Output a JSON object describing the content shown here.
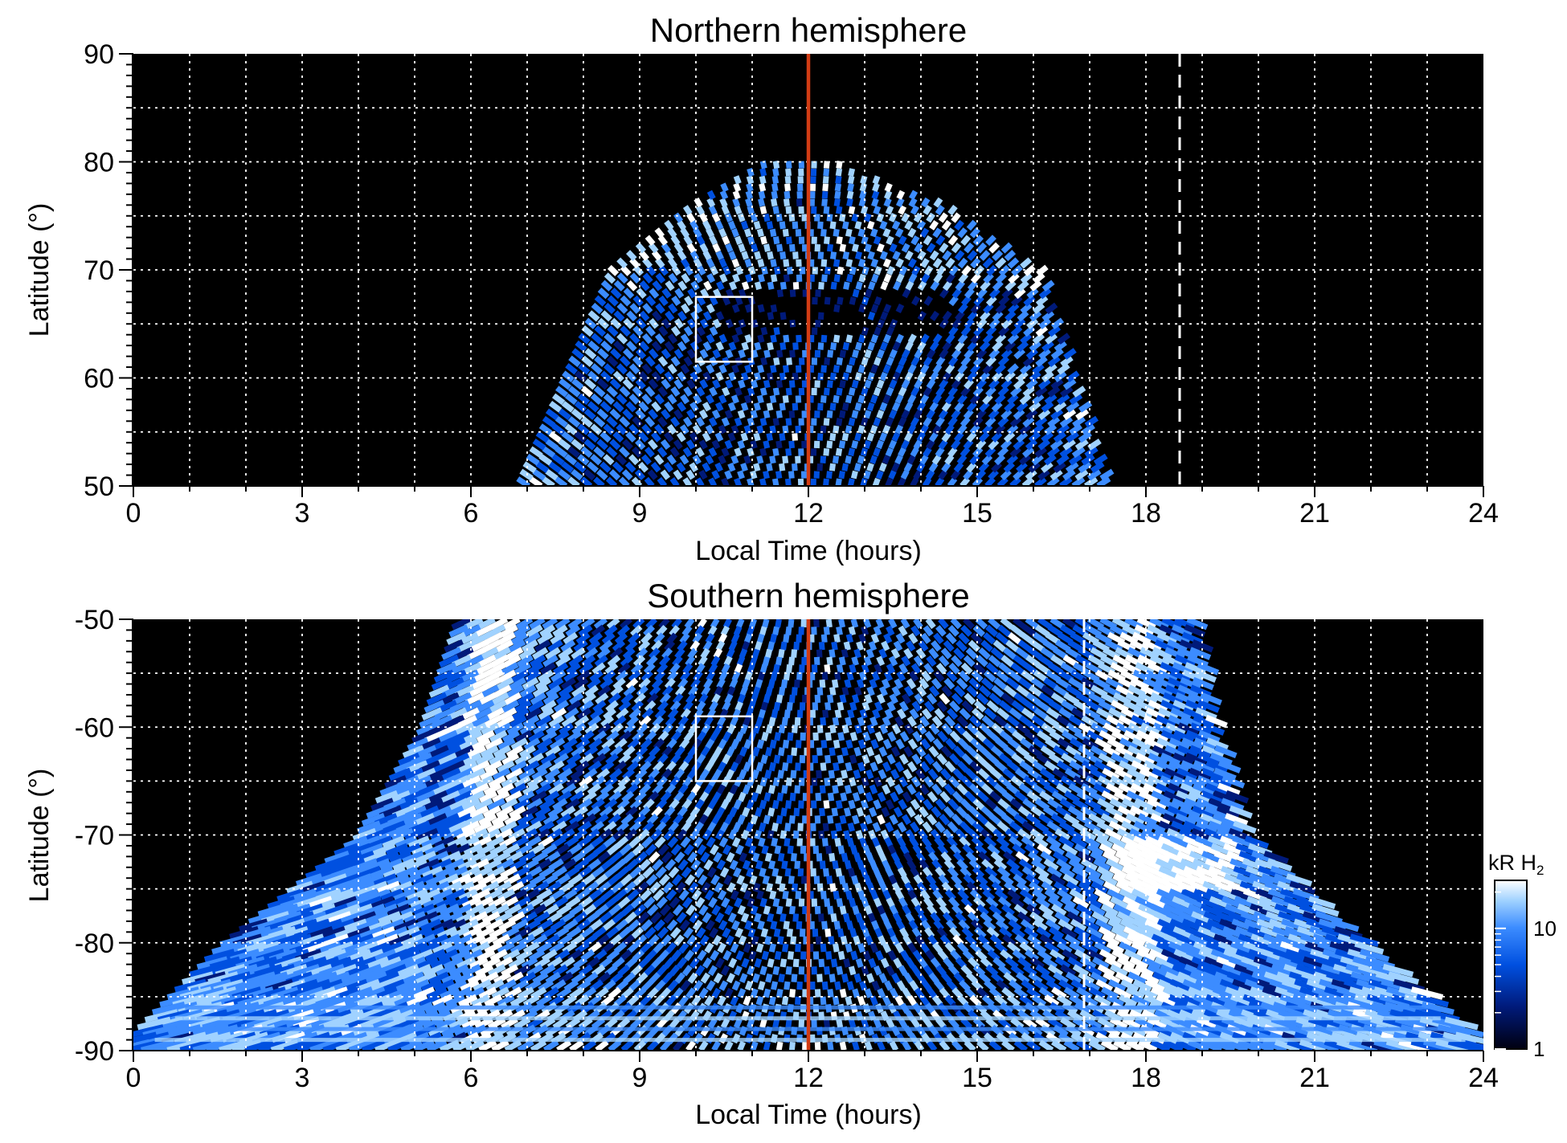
{
  "chart_data": [
    {
      "type": "heatmap",
      "title": "Northern hemisphere",
      "xlabel": "Local Time (hours)",
      "ylabel": "Latitude (°)",
      "xlim": [
        0,
        24
      ],
      "ylim": [
        50,
        90
      ],
      "x_ticks": [
        "0",
        "3",
        "6",
        "9",
        "12",
        "15",
        "18",
        "21",
        "24"
      ],
      "y_ticks": [
        "50",
        "60",
        "70",
        "80",
        "90"
      ],
      "grid": "dotted, every 1 h in local time and every 5° in latitude",
      "coverage": {
        "description": "dome-shaped region of emission",
        "lt_range_at_50": [
          7.0,
          17.3
        ],
        "lt_range_at_70": [
          8.6,
          16.1
        ],
        "max_latitude": 80
      },
      "noon_line_lt": 12,
      "dashed_line_lt": 18.6,
      "box": {
        "lt": [
          10,
          11
        ],
        "lat": [
          61.5,
          67.5
        ]
      }
    },
    {
      "type": "heatmap",
      "title": "Southern hemisphere",
      "xlabel": "Local Time (hours)",
      "ylabel": "Latitude (°)",
      "xlim": [
        0,
        24
      ],
      "ylim": [
        -90,
        -50
      ],
      "x_ticks": [
        "0",
        "3",
        "6",
        "9",
        "12",
        "15",
        "18",
        "21",
        "24"
      ],
      "y_ticks": [
        "-50",
        "-60",
        "-70",
        "-80",
        "-90"
      ],
      "grid": "dotted, every 1 h in local time and every 5° in latitude",
      "coverage": {
        "description": "region of emission widening toward the pole",
        "lt_range_at_minus50": [
          6.0,
          18.8
        ],
        "lt_range_at_minus70": [
          4.3,
          19.7
        ],
        "lt_range_at_minus80": [
          2.0,
          21.7
        ],
        "lt_range_at_minus90": [
          0.2,
          23.9
        ]
      },
      "noon_line_lt": 12,
      "dashed_line_lt": 16.9,
      "box": {
        "lt": [
          10,
          11
        ],
        "lat": [
          -65,
          -59
        ]
      }
    }
  ],
  "colorbar": {
    "label_main": "kR H",
    "label_sub": "2",
    "scale": "log",
    "range": [
      1,
      25
    ],
    "tick_labels": [
      "1",
      "10"
    ]
  },
  "colors": {
    "background": "#000000",
    "noon_line": "#d23c14",
    "emission_colormap": [
      "#000010",
      "#001a7a",
      "#0050e0",
      "#3c8cff",
      "#a0d2ff",
      "#ffffff"
    ]
  }
}
